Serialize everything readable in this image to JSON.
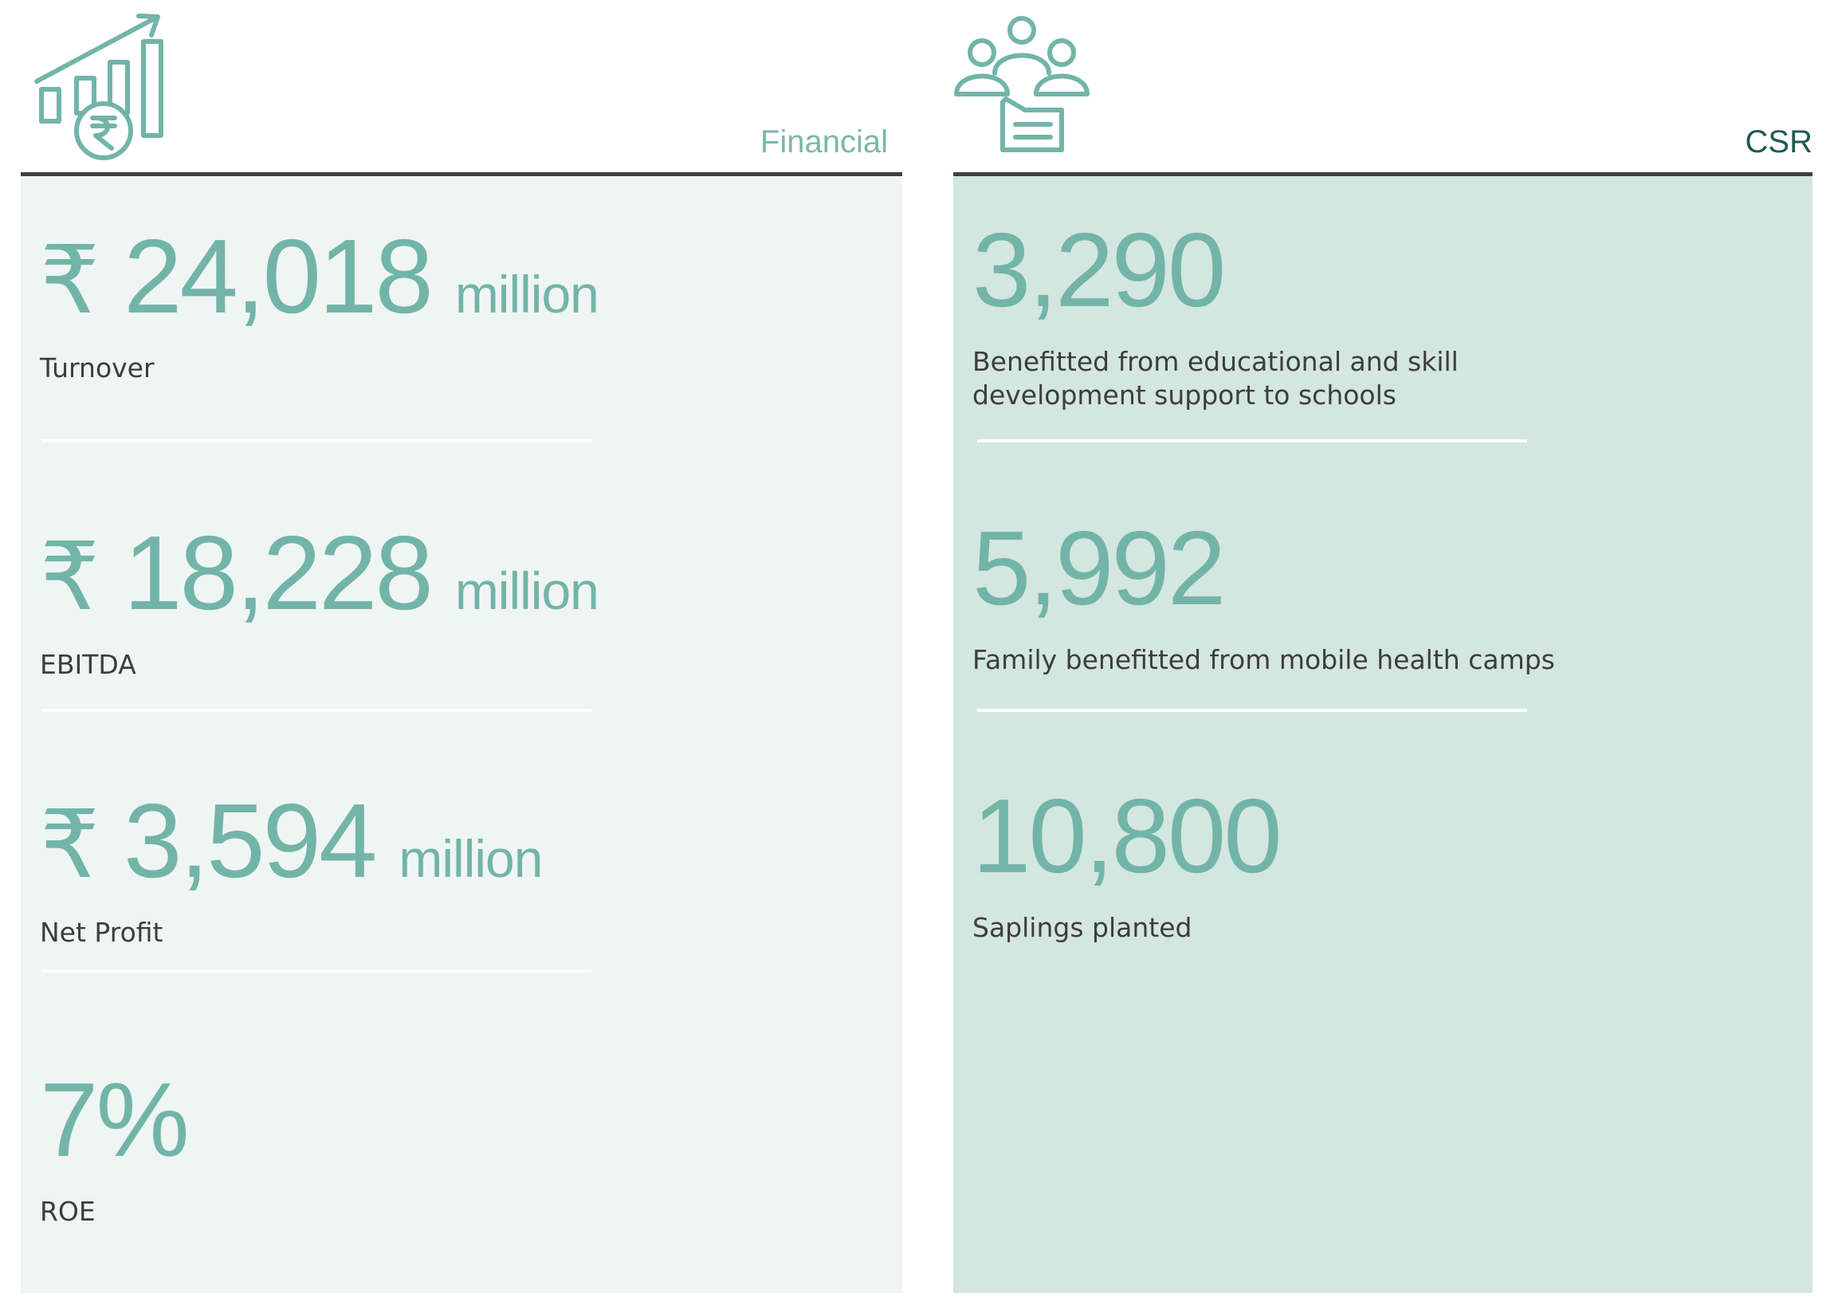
{
  "financial": {
    "title": "Financial",
    "currency_symbol": "₹",
    "stats": [
      {
        "value": "24,018",
        "unit": "million",
        "label": "Turnover"
      },
      {
        "value": "18,228",
        "unit": "million",
        "label": "EBITDA"
      },
      {
        "value": "3,594",
        "unit": "million",
        "label": "Net Profit"
      },
      {
        "value": "7%",
        "label": "ROE"
      }
    ]
  },
  "csr": {
    "title": "CSR",
    "stats": [
      {
        "value": "3,290",
        "label": "Benefitted from educational and skill development support to schools"
      },
      {
        "value": "5,992",
        "label": "Family benefitted from mobile health camps"
      },
      {
        "value": "10,800",
        "label": "Saplings planted"
      }
    ]
  },
  "colors": {
    "accent": "#72b5a8",
    "financial_bg": "#eff5f3",
    "csr_bg": "#d3e6df",
    "rule": "#3f4040"
  },
  "icons": {
    "financial": "growth-chart-rupee-icon",
    "csr": "community-group-icon"
  }
}
